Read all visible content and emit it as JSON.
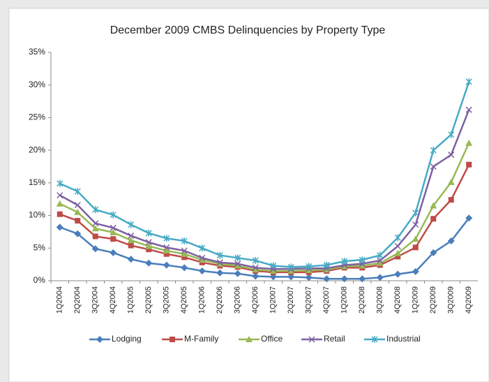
{
  "chart_data": {
    "type": "line",
    "title": "December 2009 CMBS Delinquencies by Property Type",
    "categories": [
      "1Q2004",
      "2Q2004",
      "3Q2004",
      "4Q2004",
      "1Q2005",
      "2Q2005",
      "3Q2005",
      "4Q2005",
      "1Q2006",
      "2Q2006",
      "3Q2006",
      "4Q2006",
      "1Q2007",
      "2Q2007",
      "3Q2007",
      "4Q2007",
      "1Q2008",
      "2Q2008",
      "3Q2008",
      "4Q2008",
      "1Q2009",
      "2Q2009",
      "3Q2009",
      "4Q2009"
    ],
    "series": [
      {
        "name": "Lodging",
        "color": "#4a7ebb",
        "marker": "diamond",
        "values": [
          8.2,
          7.2,
          4.9,
          4.3,
          3.3,
          2.7,
          2.4,
          2.0,
          1.5,
          1.2,
          1.1,
          0.7,
          0.6,
          0.6,
          0.5,
          0.3,
          0.3,
          0.3,
          0.5,
          1.0,
          1.4,
          4.3,
          6.1,
          9.6
        ]
      },
      {
        "name": "M-Family",
        "color": "#be4b48",
        "marker": "square",
        "values": [
          10.2,
          9.2,
          6.8,
          6.4,
          5.4,
          4.8,
          4.1,
          3.6,
          2.8,
          2.3,
          2.1,
          1.5,
          1.3,
          1.3,
          1.3,
          1.5,
          2.0,
          2.0,
          2.4,
          3.7,
          5.1,
          9.5,
          12.4,
          17.8
        ]
      },
      {
        "name": "Office",
        "color": "#98b954",
        "marker": "triangle",
        "values": [
          11.8,
          10.5,
          8.0,
          7.4,
          6.2,
          5.3,
          4.6,
          4.1,
          3.2,
          2.6,
          2.3,
          1.7,
          1.5,
          1.5,
          1.6,
          1.7,
          2.2,
          2.3,
          2.7,
          4.2,
          6.4,
          11.5,
          15.1,
          21.1
        ]
      },
      {
        "name": "Retail",
        "color": "#7d60a0",
        "marker": "x",
        "values": [
          13.1,
          11.6,
          8.8,
          8.1,
          6.9,
          5.9,
          5.1,
          4.6,
          3.5,
          2.8,
          2.6,
          2.0,
          1.8,
          1.8,
          1.9,
          1.9,
          2.4,
          2.6,
          3.1,
          5.3,
          8.6,
          17.5,
          19.3,
          26.2
        ]
      },
      {
        "name": "Industrial",
        "color": "#46aac5",
        "marker": "star",
        "values": [
          14.9,
          13.7,
          10.9,
          10.1,
          8.6,
          7.3,
          6.5,
          6.1,
          5.0,
          3.9,
          3.5,
          3.1,
          2.3,
          2.1,
          2.2,
          2.4,
          3.0,
          3.2,
          3.9,
          6.6,
          10.4,
          20.0,
          22.4,
          30.5
        ]
      }
    ],
    "ylim": [
      0,
      35
    ],
    "yticks": [
      {
        "value": 0,
        "label": "0%"
      },
      {
        "value": 5,
        "label": "5%"
      },
      {
        "value": 10,
        "label": "10%"
      },
      {
        "value": 15,
        "label": "15%"
      },
      {
        "value": 20,
        "label": "20%"
      },
      {
        "value": 25,
        "label": "25%"
      },
      {
        "value": 30,
        "label": "30%"
      },
      {
        "value": 35,
        "label": "35%"
      }
    ],
    "legend": "bottom"
  }
}
